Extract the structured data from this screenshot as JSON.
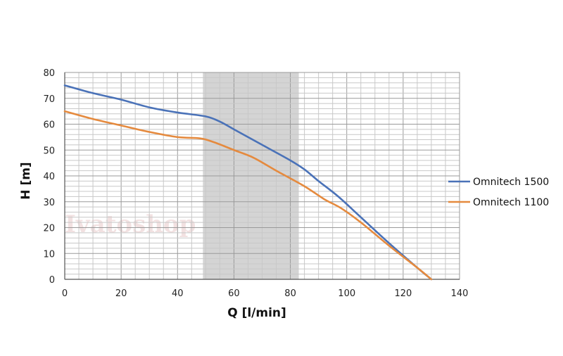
{
  "chart_data": {
    "type": "line",
    "xlabel": "Q [l/min]",
    "ylabel": "H [m]",
    "xlim": [
      0,
      140
    ],
    "ylim": [
      0,
      80
    ],
    "x_ticks": [
      0,
      20,
      40,
      60,
      80,
      100,
      120,
      140
    ],
    "y_ticks": [
      0,
      10,
      20,
      30,
      40,
      50,
      60,
      70,
      80
    ],
    "minor_x_step": 5,
    "minor_y_step": 2,
    "grid": true,
    "legend_position": "right",
    "highlight_band": {
      "x_from": 49,
      "x_to": 83,
      "color": "#d4d4d4"
    },
    "watermark": "Ivatoshop",
    "series": [
      {
        "name": "Omnitech 1500",
        "color": "#4a72b8",
        "points": [
          [
            0,
            75
          ],
          [
            10,
            72
          ],
          [
            20,
            69.5
          ],
          [
            30,
            66.5
          ],
          [
            40,
            64.5
          ],
          [
            50,
            63
          ],
          [
            55,
            61
          ],
          [
            60,
            58
          ],
          [
            70,
            52
          ],
          [
            80,
            46
          ],
          [
            85,
            42.5
          ],
          [
            90,
            38
          ],
          [
            97,
            32
          ],
          [
            105,
            24
          ],
          [
            115,
            14
          ],
          [
            125,
            4.5
          ],
          [
            130,
            0
          ]
        ]
      },
      {
        "name": "Omnitech 1100",
        "color": "#e58a3e",
        "points": [
          [
            0,
            65
          ],
          [
            10,
            62
          ],
          [
            20,
            59.5
          ],
          [
            30,
            57
          ],
          [
            40,
            55
          ],
          [
            48,
            54.5
          ],
          [
            53,
            53
          ],
          [
            60,
            50
          ],
          [
            67,
            47
          ],
          [
            75,
            42
          ],
          [
            85,
            36
          ],
          [
            92,
            31
          ],
          [
            98,
            27.5
          ],
          [
            105,
            22
          ],
          [
            115,
            13
          ],
          [
            125,
            4.5
          ],
          [
            130,
            0
          ]
        ]
      }
    ]
  }
}
